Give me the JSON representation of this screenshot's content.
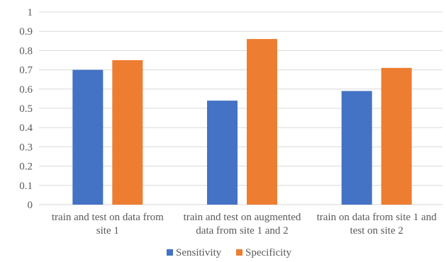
{
  "chart_data": {
    "type": "bar",
    "categories": [
      [
        "train and test on data from",
        "site 1"
      ],
      [
        "train and test on augmented",
        "data from site 1 and 2"
      ],
      [
        "train on data from site 1 and",
        "test on  site 2"
      ]
    ],
    "series": [
      {
        "name": "Sensitivity",
        "color": "#4472c4",
        "values": [
          0.7,
          0.54,
          0.59
        ]
      },
      {
        "name": "Specificity",
        "color": "#ed7d31",
        "values": [
          0.75,
          0.86,
          0.71
        ]
      }
    ],
    "ylim": [
      0,
      1
    ],
    "yticks": [
      "0",
      "0.1",
      "0.2",
      "0.3",
      "0.4",
      "0.5",
      "0.6",
      "0.7",
      "0.8",
      "0.9",
      "1"
    ],
    "grid": true,
    "legend": "bottom"
  }
}
